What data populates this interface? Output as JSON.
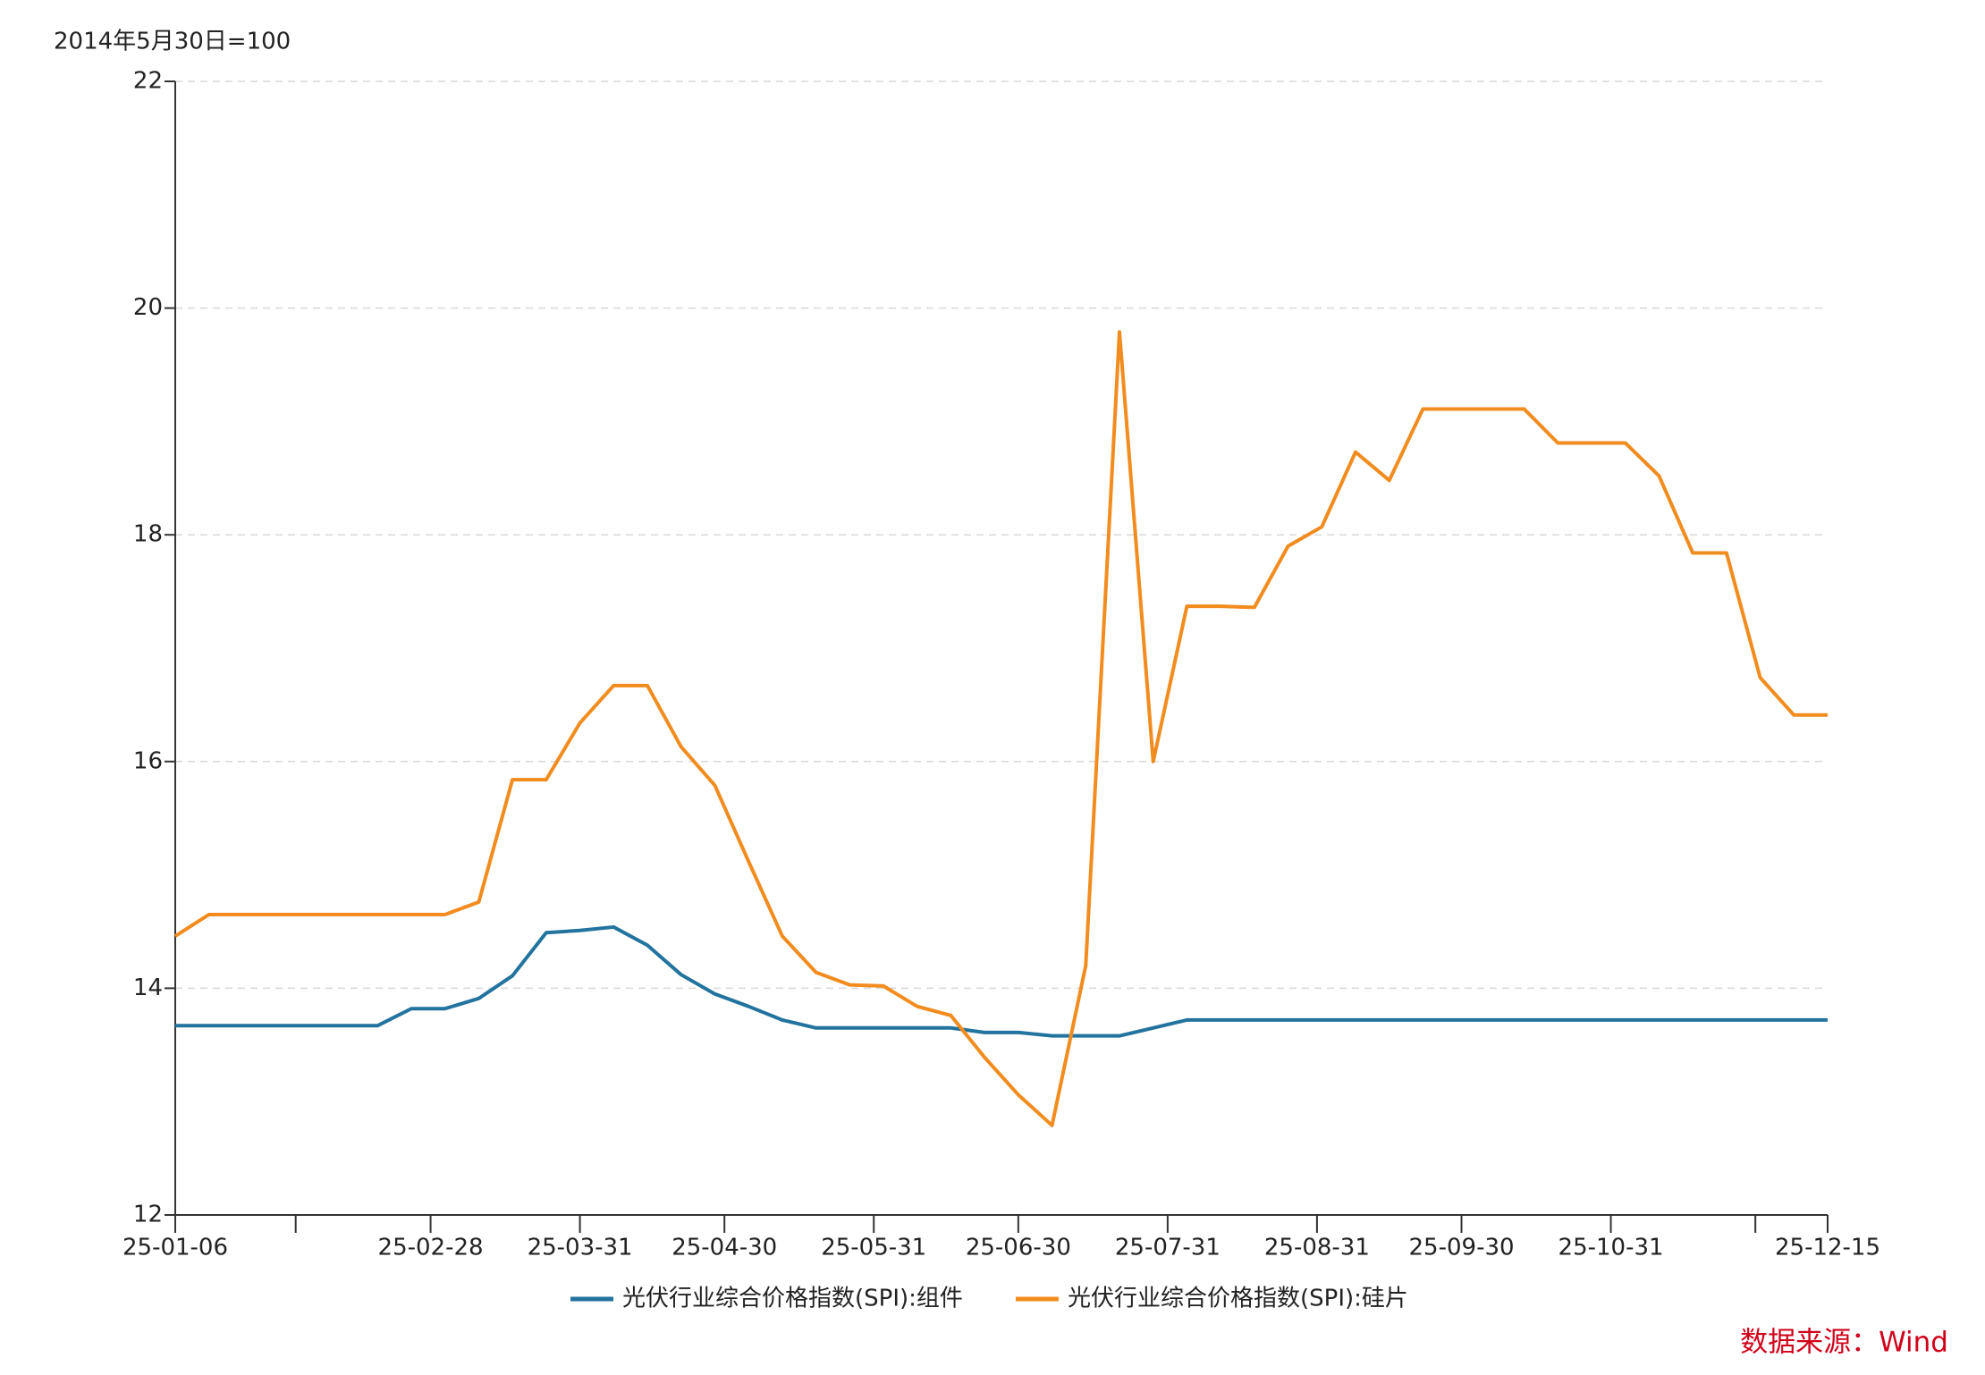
{
  "chart_data": {
    "type": "line",
    "unit_label": "2014年5月30日=100",
    "source": "数据来源：Wind",
    "x": [
      "25-01-06",
      "25-01-13",
      "25-01-20",
      "25-01-27",
      "25-02-03",
      "25-02-10",
      "25-02-17",
      "25-02-24",
      "25-03-03",
      "25-03-10",
      "25-03-17",
      "25-03-24",
      "25-03-31",
      "25-04-07",
      "25-04-14",
      "25-04-21",
      "25-04-28",
      "25-05-05",
      "25-05-12",
      "25-05-19",
      "25-05-26",
      "25-06-02",
      "25-06-09",
      "25-06-16",
      "25-06-23",
      "25-06-30",
      "25-07-07",
      "25-07-14",
      "25-07-21",
      "25-07-28",
      "25-08-04",
      "25-08-11",
      "25-08-18",
      "25-08-25",
      "25-09-01",
      "25-09-08",
      "25-09-15",
      "25-09-22",
      "25-09-29",
      "25-10-06",
      "25-10-13",
      "25-10-20",
      "25-10-27",
      "25-11-03",
      "25-11-10",
      "25-11-17",
      "25-11-24",
      "25-12-01",
      "25-12-08",
      "25-12-15"
    ],
    "series": [
      {
        "name": "光伏行业综合价格指数(SPI):组件",
        "color": "#22739e",
        "values": [
          13.67,
          13.67,
          13.67,
          13.67,
          13.67,
          13.67,
          13.67,
          13.82,
          13.82,
          13.91,
          14.11,
          14.49,
          14.51,
          14.54,
          14.38,
          14.12,
          13.95,
          13.84,
          13.72,
          13.65,
          13.65,
          13.65,
          13.65,
          13.65,
          13.61,
          13.61,
          13.58,
          13.58,
          13.58,
          13.65,
          13.72,
          13.72,
          13.72,
          13.72,
          13.72,
          13.72,
          13.72,
          13.72,
          13.72,
          13.72,
          13.72,
          13.72,
          13.72,
          13.72,
          13.72,
          13.72,
          13.72,
          13.72,
          13.72,
          13.72
        ]
      },
      {
        "name": "光伏行业综合价格指数(SPI):硅片",
        "color": "#f28c1e",
        "values": [
          14.46,
          14.65,
          14.65,
          14.65,
          14.65,
          14.65,
          14.65,
          14.65,
          14.65,
          14.76,
          15.84,
          15.84,
          16.34,
          16.67,
          16.67,
          16.13,
          15.79,
          15.12,
          14.46,
          14.14,
          14.03,
          14.02,
          13.84,
          13.76,
          13.39,
          13.06,
          12.79,
          14.2,
          19.79,
          16.0,
          17.37,
          17.37,
          17.36,
          17.9,
          18.07,
          18.73,
          18.48,
          19.11,
          19.11,
          19.11,
          19.11,
          18.81,
          18.81,
          18.81,
          18.52,
          17.84,
          17.84,
          16.74,
          16.41,
          16.41
        ]
      }
    ],
    "xlim": [
      "25-01-06",
      "25-12-15"
    ],
    "xticks": [
      "25-01-06",
      {
        "value": "25-01-31",
        "label": null
      },
      "25-02-28",
      "25-03-31",
      "25-04-30",
      "25-05-31",
      "25-06-30",
      "25-07-31",
      "25-08-31",
      "25-09-30",
      "25-10-31",
      {
        "value": "25-11-30",
        "label": null
      },
      "25-12-15"
    ],
    "ylim": [
      12,
      22
    ],
    "yticks": [
      12,
      14,
      16,
      18,
      20,
      22
    ],
    "grid": true,
    "legend": "bottom"
  }
}
